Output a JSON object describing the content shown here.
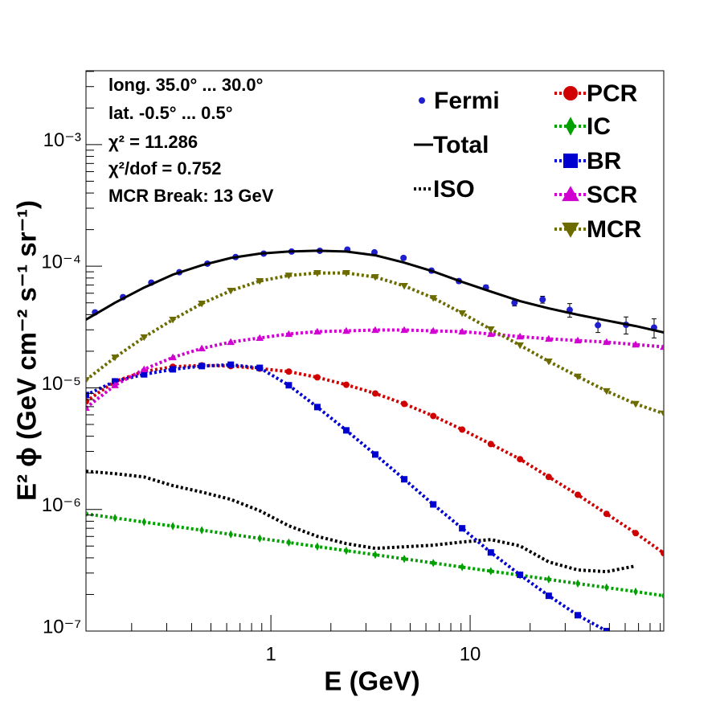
{
  "chart_data": {
    "type": "line",
    "xlabel": "E (GeV)",
    "ylabel": "E² ϕ (GeV cm⁻² s⁻¹ sr⁻¹)",
    "log_x": true,
    "log_y": true,
    "xlim": [
      0.118,
      93.7
    ],
    "ylim": [
      1e-07,
      0.00405
    ],
    "xticks": [
      1,
      10
    ],
    "yticks": [
      {
        "value": 1e-07,
        "label": "10⁻⁷"
      },
      {
        "value": 1e-06,
        "label": "10⁻⁶"
      },
      {
        "value": 1e-05,
        "label": "10⁻⁵"
      },
      {
        "value": 0.0001,
        "label": "10⁻⁴"
      },
      {
        "value": 0.001,
        "label": "10⁻³"
      }
    ],
    "annotations": [
      "long. 35.0° ... 30.0°",
      "lat. -0.5° ... 0.5°",
      "χ² = 11.286",
      "χ²/dof = 0.752",
      "MCR Break: 13 GeV"
    ],
    "series": [
      {
        "name": "Fermi",
        "color": "#1f1fd0",
        "marker": "circle",
        "line_style": "none",
        "x": [
          0.131,
          0.181,
          0.251,
          0.347,
          0.48,
          0.665,
          0.92,
          1.27,
          1.76,
          2.42,
          3.31,
          4.63,
          6.4,
          8.78,
          12.0,
          16.7,
          23.1,
          31.6,
          43.8,
          60.6,
          83.8
        ],
        "values": [
          4.17e-05,
          5.57e-05,
          7.33e-05,
          8.92e-05,
          0.000105,
          0.000119,
          0.000127,
          0.000132,
          0.000134,
          0.000137,
          0.00013,
          0.000117,
          9.2e-05,
          7.55e-05,
          6.68e-05,
          5.01e-05,
          5.32e-05,
          4.37e-05,
          3.27e-05,
          3.3e-05,
          3.13e-05
        ],
        "errors": [
          1.5e-06,
          2e-06,
          2.5e-06,
          3e-06,
          3.5e-06,
          4e-06,
          4e-06,
          4e-06,
          4e-06,
          4e-06,
          4e-06,
          4e-06,
          3.5e-06,
          3e-06,
          3e-06,
          3e-06,
          3.5e-06,
          5.6e-06,
          4.2e-06,
          5.3e-06,
          5.6e-06
        ]
      },
      {
        "name": "Total",
        "color": "#000000",
        "marker": "none",
        "line_style": "solid",
        "x": [
          0.118,
          0.165,
          0.231,
          0.322,
          0.45,
          0.629,
          0.879,
          1.23,
          1.71,
          2.39,
          3.34,
          4.67,
          6.53,
          9.12,
          12.7,
          17.8,
          24.8,
          34.7,
          48.4,
          67.7,
          93.7
        ],
        "values": [
          3.64e-05,
          5.01e-05,
          6.68e-05,
          8.53e-05,
          0.000102,
          0.000117,
          0.000127,
          0.000132,
          0.000134,
          0.000132,
          0.000123,
          0.000107,
          9.06e-05,
          7.43e-05,
          6.19e-05,
          5.16e-05,
          4.5e-05,
          3.99e-05,
          3.58e-05,
          3.22e-05,
          2.85e-05
        ]
      },
      {
        "name": "ISO",
        "color": "#000000",
        "marker": "none",
        "line_style": "dotted",
        "x": [
          0.118,
          0.165,
          0.231,
          0.322,
          0.45,
          0.629,
          0.879,
          1.23,
          1.71,
          2.39,
          3.34,
          4.67,
          6.53,
          9.12,
          12.7,
          17.8,
          24.8,
          34.7,
          48.4,
          67.7,
          93.7
        ],
        "values": [
          2.06e-06,
          1.97e-06,
          1.85e-06,
          1.57e-06,
          1.39e-06,
          1.21e-06,
          9.77e-07,
          7.33e-07,
          6.01e-07,
          5.24e-07,
          4.79e-07,
          4.93e-07,
          5.08e-07,
          5.4e-07,
          5.65e-07,
          5.01e-07,
          3.7e-07,
          3.18e-07,
          3.08e-07,
          3.43e-07,
          null
        ]
      },
      {
        "name": "PCR",
        "color": "#d00000",
        "marker": "circle",
        "line_style": "dotted",
        "x": [
          0.118,
          0.165,
          0.231,
          0.322,
          0.45,
          0.629,
          0.879,
          1.23,
          1.71,
          2.39,
          3.34,
          4.67,
          6.53,
          9.12,
          12.7,
          17.8,
          24.8,
          34.7,
          48.4,
          67.7,
          93.7
        ],
        "values": [
          7.73e-06,
          1.13e-05,
          1.36e-05,
          1.49e-05,
          1.53e-05,
          1.51e-05,
          1.44e-05,
          1.36e-05,
          1.22e-05,
          1.06e-05,
          8.99e-06,
          7.38e-06,
          5.87e-06,
          4.54e-06,
          3.45e-06,
          2.59e-06,
          1.85e-06,
          1.32e-06,
          9.2e-07,
          6.39e-07,
          4.37e-07
        ]
      },
      {
        "name": "IC",
        "color": "#00a000",
        "marker": "diamond",
        "line_style": "dotted",
        "x": [
          0.118,
          0.165,
          0.231,
          0.322,
          0.45,
          0.629,
          0.879,
          1.23,
          1.71,
          2.39,
          3.34,
          4.67,
          6.53,
          9.12,
          12.7,
          17.8,
          24.8,
          34.7,
          48.4,
          67.7,
          93.7
        ],
        "values": [
          9.2e-07,
          8.51e-07,
          7.88e-07,
          7.29e-07,
          6.75e-07,
          6.24e-07,
          5.78e-07,
          5.35e-07,
          4.95e-07,
          4.58e-07,
          4.24e-07,
          3.92e-07,
          3.63e-07,
          3.36e-07,
          3.11e-07,
          2.88e-07,
          2.66e-07,
          2.46e-07,
          2.28e-07,
          2.11e-07,
          1.95e-07
        ]
      },
      {
        "name": "BR",
        "color": "#0000d0",
        "marker": "square",
        "line_style": "dotted",
        "x": [
          0.118,
          0.165,
          0.231,
          0.322,
          0.45,
          0.629,
          0.879,
          1.23,
          1.71,
          2.39,
          3.34,
          4.67,
          6.53,
          9.12,
          12.7,
          17.8,
          24.8,
          34.7,
          48.4,
          67.7,
          93.7
        ],
        "values": [
          8.73e-06,
          1.13e-05,
          1.29e-05,
          1.42e-05,
          1.51e-05,
          1.55e-05,
          1.46e-05,
          1.05e-05,
          6.95e-06,
          4.47e-06,
          2.83e-06,
          1.77e-06,
          1.1e-06,
          7e-07,
          4.43e-07,
          2.9e-07,
          1.95e-07,
          1.35e-07,
          1e-07,
          null,
          null
        ]
      },
      {
        "name": "SCR",
        "color": "#d000d0",
        "marker": "triangle-up",
        "line_style": "dotted",
        "x": [
          0.118,
          0.165,
          0.231,
          0.322,
          0.45,
          0.629,
          0.879,
          1.23,
          1.71,
          2.39,
          3.34,
          4.67,
          6.53,
          9.12,
          12.7,
          17.8,
          24.8,
          34.7,
          48.4,
          67.7,
          93.7
        ],
        "values": [
          6.84e-06,
          1.05e-05,
          1.42e-05,
          1.78e-05,
          2.11e-05,
          2.38e-05,
          2.57e-05,
          2.77e-05,
          2.9e-05,
          2.94e-05,
          2.99e-05,
          2.99e-05,
          2.94e-05,
          2.9e-05,
          2.77e-05,
          2.64e-05,
          2.53e-05,
          2.45e-05,
          2.38e-05,
          2.27e-05,
          2.17e-05
        ]
      },
      {
        "name": "MCR",
        "color": "#6b6b00",
        "marker": "triangle-down",
        "line_style": "dotted",
        "x": [
          0.118,
          0.165,
          0.231,
          0.322,
          0.45,
          0.629,
          0.879,
          1.23,
          1.71,
          2.39,
          3.34,
          4.67,
          6.53,
          9.12,
          12.7,
          17.8,
          24.8,
          34.7,
          48.4,
          67.7,
          93.7
        ],
        "values": [
          1.16e-05,
          1.78e-05,
          2.61e-05,
          3.64e-05,
          4.93e-05,
          6.29e-05,
          7.55e-05,
          8.39e-05,
          8.79e-05,
          8.79e-05,
          8.15e-05,
          6.89e-05,
          5.48e-05,
          4.11e-05,
          3.03e-05,
          2.24e-05,
          1.65e-05,
          1.24e-05,
          9.4e-06,
          7.38e-06,
          6.15e-06
        ]
      }
    ]
  }
}
